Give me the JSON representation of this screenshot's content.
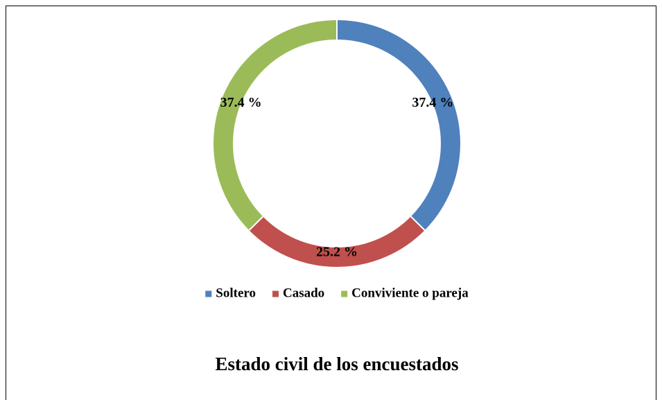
{
  "chart_data": {
    "type": "donut",
    "title": "Estado civil de los encuestados",
    "categories": [
      "Soltero",
      "Casado",
      "Conviviente o pareja"
    ],
    "values": [
      37.4,
      25.2,
      37.4
    ],
    "value_labels": [
      "37.4 %",
      "25.2 %",
      "37.4 %"
    ],
    "colors": [
      "#4f81bd",
      "#c0504d",
      "#9bbb59"
    ],
    "legend": "bottom"
  }
}
